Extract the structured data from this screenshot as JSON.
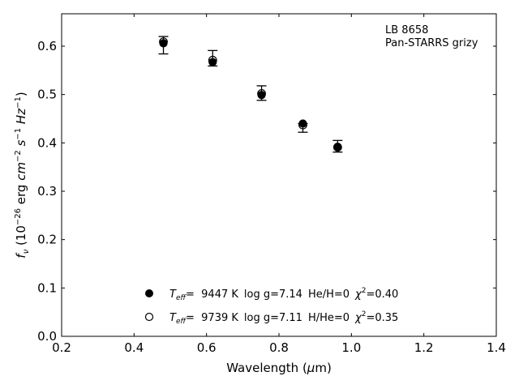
{
  "chart_data": {
    "type": "scatter",
    "title": "",
    "xlabel": "Wavelength (μm)",
    "ylabel": "f_ν (10^-26 erg cm^-2 s^-1 Hz^-1)",
    "xlim": [
      0.2,
      1.4
    ],
    "ylim": [
      0.0,
      0.667
    ],
    "xticks": [
      0.2,
      0.4,
      0.6,
      0.8,
      1.0,
      1.2,
      1.4
    ],
    "yticks": [
      0.0,
      0.1,
      0.2,
      0.3,
      0.4,
      0.5,
      0.6
    ],
    "grid": false,
    "annotation": [
      "LB 8658",
      "Pan-STARRS grizy"
    ],
    "observed": {
      "x": [
        0.481,
        0.617,
        0.752,
        0.866,
        0.962
      ],
      "y": [
        0.602,
        0.575,
        0.503,
        0.431,
        0.393
      ],
      "yerr": [
        0.018,
        0.016,
        0.015,
        0.009,
        0.012
      ]
    },
    "series": [
      {
        "name": "T_eff= 9447 K log g=7.14 He/H=0 χ²=0.40",
        "marker": "filled",
        "x": [
          0.481,
          0.617,
          0.752,
          0.866,
          0.962
        ],
        "y": [
          0.606,
          0.567,
          0.499,
          0.44,
          0.392
        ]
      },
      {
        "name": "T_eff= 9739 K log g=7.11 H/He=0 χ²=0.35",
        "marker": "open",
        "x": [
          0.481,
          0.617,
          0.752,
          0.866,
          0.962
        ],
        "y": [
          0.609,
          0.571,
          0.502,
          0.437,
          0.391
        ]
      }
    ],
    "legend": {
      "position": "lower-center",
      "entries": [
        {
          "teff_label": "T",
          "teff_sub": "eff",
          "teff_value": "=  9447 K",
          "logg": "log g=7.14",
          "comp": "He/H=0",
          "chi_label": "χ",
          "chi_sup": "2",
          "chi_value": "=0.40",
          "marker": "filled"
        },
        {
          "teff_label": "T",
          "teff_sub": "eff",
          "teff_value": "=  9739 K",
          "logg": "log g=7.11",
          "comp": "H/He=0",
          "chi_label": "χ",
          "chi_sup": "2",
          "chi_value": "=0.35",
          "marker": "open"
        }
      ]
    },
    "colors": {
      "marker": "#000000",
      "axes": "#000000",
      "background": "#ffffff"
    }
  }
}
